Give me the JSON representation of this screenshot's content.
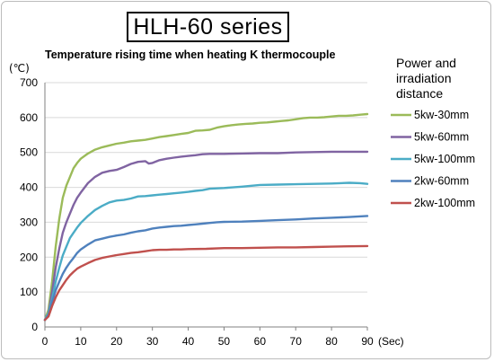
{
  "header": {
    "title": "HLH-60 series"
  },
  "chart_data": {
    "type": "line",
    "title": "Temperature rising time when heating K thermocouple",
    "ylabel": "(℃)",
    "xlabel": "(Sec)",
    "xlim": [
      0,
      90
    ],
    "ylim": [
      0,
      700
    ],
    "x_ticks": [
      "0",
      "10",
      "20",
      "30",
      "40",
      "50",
      "60",
      "70",
      "80",
      "90"
    ],
    "y_ticks": [
      "0",
      "100",
      "200",
      "300",
      "400",
      "500",
      "600",
      "700"
    ],
    "grid": "horizontal",
    "legend": {
      "title_lines": [
        "Power and",
        "irradiation",
        "distance"
      ],
      "placement": "right"
    },
    "series": [
      {
        "name": "5kw-30mm",
        "color": "#9bbb59",
        "points": [
          [
            0,
            20
          ],
          [
            1,
            50
          ],
          [
            2,
            130
          ],
          [
            3,
            230
          ],
          [
            4,
            310
          ],
          [
            5,
            370
          ],
          [
            6,
            405
          ],
          [
            7,
            430
          ],
          [
            8,
            455
          ],
          [
            9,
            470
          ],
          [
            10,
            482
          ],
          [
            12,
            497
          ],
          [
            14,
            508
          ],
          [
            16,
            515
          ],
          [
            18,
            520
          ],
          [
            20,
            525
          ],
          [
            22,
            528
          ],
          [
            24,
            532
          ],
          [
            26,
            534
          ],
          [
            28,
            536
          ],
          [
            30,
            540
          ],
          [
            32,
            544
          ],
          [
            34,
            547
          ],
          [
            36,
            550
          ],
          [
            38,
            553
          ],
          [
            40,
            556
          ],
          [
            42,
            562
          ],
          [
            44,
            563
          ],
          [
            46,
            565
          ],
          [
            48,
            571
          ],
          [
            50,
            575
          ],
          [
            52,
            578
          ],
          [
            54,
            580
          ],
          [
            56,
            582
          ],
          [
            58,
            583
          ],
          [
            60,
            585
          ],
          [
            62,
            586
          ],
          [
            64,
            588
          ],
          [
            66,
            590
          ],
          [
            68,
            592
          ],
          [
            70,
            595
          ],
          [
            72,
            598
          ],
          [
            74,
            600
          ],
          [
            76,
            600
          ],
          [
            78,
            601
          ],
          [
            80,
            603
          ],
          [
            82,
            605
          ],
          [
            84,
            605
          ],
          [
            86,
            606
          ],
          [
            88,
            608
          ],
          [
            90,
            610
          ]
        ]
      },
      {
        "name": "5kw-60mm",
        "color": "#8064a2",
        "points": [
          [
            0,
            20
          ],
          [
            1,
            40
          ],
          [
            2,
            100
          ],
          [
            3,
            170
          ],
          [
            4,
            225
          ],
          [
            5,
            270
          ],
          [
            6,
            300
          ],
          [
            7,
            325
          ],
          [
            8,
            350
          ],
          [
            9,
            370
          ],
          [
            10,
            385
          ],
          [
            12,
            412
          ],
          [
            14,
            430
          ],
          [
            16,
            442
          ],
          [
            18,
            447
          ],
          [
            20,
            450
          ],
          [
            22,
            458
          ],
          [
            24,
            467
          ],
          [
            26,
            473
          ],
          [
            28,
            475
          ],
          [
            29,
            468
          ],
          [
            30,
            470
          ],
          [
            32,
            478
          ],
          [
            34,
            482
          ],
          [
            36,
            485
          ],
          [
            38,
            488
          ],
          [
            40,
            490
          ],
          [
            42,
            492
          ],
          [
            44,
            495
          ],
          [
            46,
            496
          ],
          [
            48,
            496
          ],
          [
            50,
            496
          ],
          [
            55,
            497
          ],
          [
            60,
            498
          ],
          [
            65,
            498
          ],
          [
            70,
            500
          ],
          [
            75,
            501
          ],
          [
            80,
            502
          ],
          [
            85,
            502
          ],
          [
            90,
            502
          ]
        ]
      },
      {
        "name": "5kw-100mm",
        "color": "#4bacc6",
        "points": [
          [
            0,
            20
          ],
          [
            1,
            40
          ],
          [
            2,
            80
          ],
          [
            3,
            130
          ],
          [
            4,
            170
          ],
          [
            5,
            205
          ],
          [
            6,
            230
          ],
          [
            7,
            255
          ],
          [
            8,
            270
          ],
          [
            9,
            285
          ],
          [
            10,
            298
          ],
          [
            12,
            318
          ],
          [
            14,
            335
          ],
          [
            16,
            347
          ],
          [
            18,
            357
          ],
          [
            20,
            362
          ],
          [
            22,
            364
          ],
          [
            24,
            368
          ],
          [
            26,
            374
          ],
          [
            28,
            375
          ],
          [
            30,
            377
          ],
          [
            32,
            379
          ],
          [
            34,
            381
          ],
          [
            36,
            383
          ],
          [
            38,
            385
          ],
          [
            40,
            387
          ],
          [
            42,
            390
          ],
          [
            44,
            392
          ],
          [
            46,
            396
          ],
          [
            48,
            397
          ],
          [
            50,
            398
          ],
          [
            55,
            402
          ],
          [
            60,
            407
          ],
          [
            65,
            408
          ],
          [
            70,
            409
          ],
          [
            75,
            410
          ],
          [
            80,
            411
          ],
          [
            85,
            413
          ],
          [
            88,
            412
          ],
          [
            90,
            410
          ]
        ]
      },
      {
        "name": "2kw-60mm",
        "color": "#4f81bd",
        "points": [
          [
            0,
            20
          ],
          [
            1,
            35
          ],
          [
            2,
            70
          ],
          [
            3,
            105
          ],
          [
            4,
            130
          ],
          [
            5,
            152
          ],
          [
            6,
            170
          ],
          [
            7,
            185
          ],
          [
            8,
            198
          ],
          [
            9,
            212
          ],
          [
            10,
            222
          ],
          [
            12,
            236
          ],
          [
            14,
            248
          ],
          [
            16,
            253
          ],
          [
            18,
            258
          ],
          [
            20,
            262
          ],
          [
            22,
            265
          ],
          [
            24,
            270
          ],
          [
            26,
            274
          ],
          [
            28,
            277
          ],
          [
            30,
            282
          ],
          [
            32,
            285
          ],
          [
            34,
            287
          ],
          [
            36,
            289
          ],
          [
            38,
            290
          ],
          [
            40,
            292
          ],
          [
            42,
            294
          ],
          [
            44,
            296
          ],
          [
            46,
            298
          ],
          [
            48,
            300
          ],
          [
            50,
            301
          ],
          [
            55,
            302
          ],
          [
            60,
            304
          ],
          [
            65,
            306
          ],
          [
            70,
            308
          ],
          [
            75,
            311
          ],
          [
            80,
            313
          ],
          [
            85,
            315
          ],
          [
            90,
            318
          ]
        ]
      },
      {
        "name": "2kw-100mm",
        "color": "#c0504d",
        "points": [
          [
            0,
            20
          ],
          [
            1,
            30
          ],
          [
            2,
            60
          ],
          [
            3,
            85
          ],
          [
            4,
            105
          ],
          [
            5,
            120
          ],
          [
            6,
            135
          ],
          [
            7,
            148
          ],
          [
            8,
            158
          ],
          [
            9,
            167
          ],
          [
            10,
            173
          ],
          [
            12,
            183
          ],
          [
            14,
            192
          ],
          [
            16,
            198
          ],
          [
            18,
            202
          ],
          [
            20,
            206
          ],
          [
            22,
            209
          ],
          [
            24,
            212
          ],
          [
            26,
            214
          ],
          [
            28,
            217
          ],
          [
            30,
            220
          ],
          [
            32,
            221
          ],
          [
            34,
            221
          ],
          [
            36,
            222
          ],
          [
            38,
            222
          ],
          [
            40,
            223
          ],
          [
            45,
            224
          ],
          [
            50,
            226
          ],
          [
            55,
            226
          ],
          [
            60,
            227
          ],
          [
            65,
            228
          ],
          [
            70,
            228
          ],
          [
            75,
            229
          ],
          [
            80,
            230
          ],
          [
            85,
            231
          ],
          [
            90,
            232
          ]
        ]
      }
    ]
  }
}
